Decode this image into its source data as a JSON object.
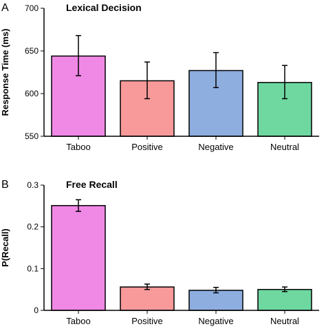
{
  "chart_data": [
    {
      "type": "bar",
      "panel_label": "A",
      "title": "Lexical Decision",
      "ylabel": "Response Time (ms)",
      "xlabel": "",
      "categories": [
        "Taboo",
        "Positive",
        "Negative",
        "Neutral"
      ],
      "values": [
        644,
        615,
        627,
        613
      ],
      "error_low": [
        621,
        594,
        607,
        594
      ],
      "error_high": [
        668,
        637,
        648,
        633
      ],
      "colors": [
        "#f088e6",
        "#f89a9a",
        "#8eaee0",
        "#6ed8a0"
      ],
      "ylim": [
        550,
        700
      ],
      "yticks": [
        "550",
        "600",
        "650",
        "700"
      ],
      "grid": false
    },
    {
      "type": "bar",
      "panel_label": "B",
      "title": "Free Recall",
      "ylabel": "P(Recall)",
      "xlabel": "",
      "categories": [
        "Taboo",
        "Positive",
        "Negative",
        "Neutral"
      ],
      "values": [
        0.251,
        0.056,
        0.048,
        0.05
      ],
      "error_low": [
        0.237,
        0.05,
        0.042,
        0.045
      ],
      "error_high": [
        0.265,
        0.063,
        0.055,
        0.056
      ],
      "colors": [
        "#f088e6",
        "#f89a9a",
        "#8eaee0",
        "#6ed8a0"
      ],
      "ylim": [
        0,
        0.3
      ],
      "yticks": [
        "0",
        "0.1",
        "0.2",
        "0.3"
      ],
      "grid": false
    }
  ]
}
